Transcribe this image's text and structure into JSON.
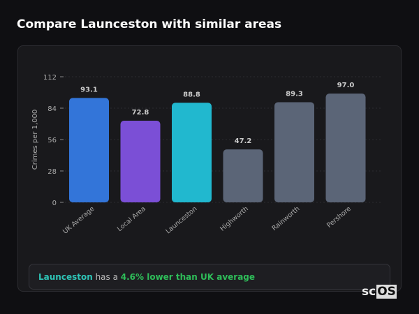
{
  "title": "Compare Launceston with similar areas",
  "chart_data": {
    "type": "bar",
    "categories": [
      "UK Average",
      "Local Area",
      "Launceston",
      "Highworth",
      "Rainworth",
      "Pershore"
    ],
    "values": [
      93.1,
      72.8,
      88.8,
      47.2,
      89.3,
      97.0
    ],
    "value_labels": [
      "93.1",
      "72.8",
      "88.8",
      "47.2",
      "89.3",
      "97.0"
    ],
    "colors": [
      "#3375d9",
      "#7b4fd6",
      "#21b8cf",
      "#5b6577",
      "#5b6577",
      "#5b6577"
    ],
    "ylabel": "Crimes per 1,000",
    "xlabel": "",
    "ylim": [
      0,
      112
    ],
    "yticks": [
      0,
      28,
      56,
      84,
      112
    ],
    "grid": true
  },
  "summary": {
    "area": "Launceston",
    "middle": " has a ",
    "comparison": "4.6% lower than UK average"
  },
  "logo": {
    "prefix": "sc",
    "suffix": "OS"
  }
}
